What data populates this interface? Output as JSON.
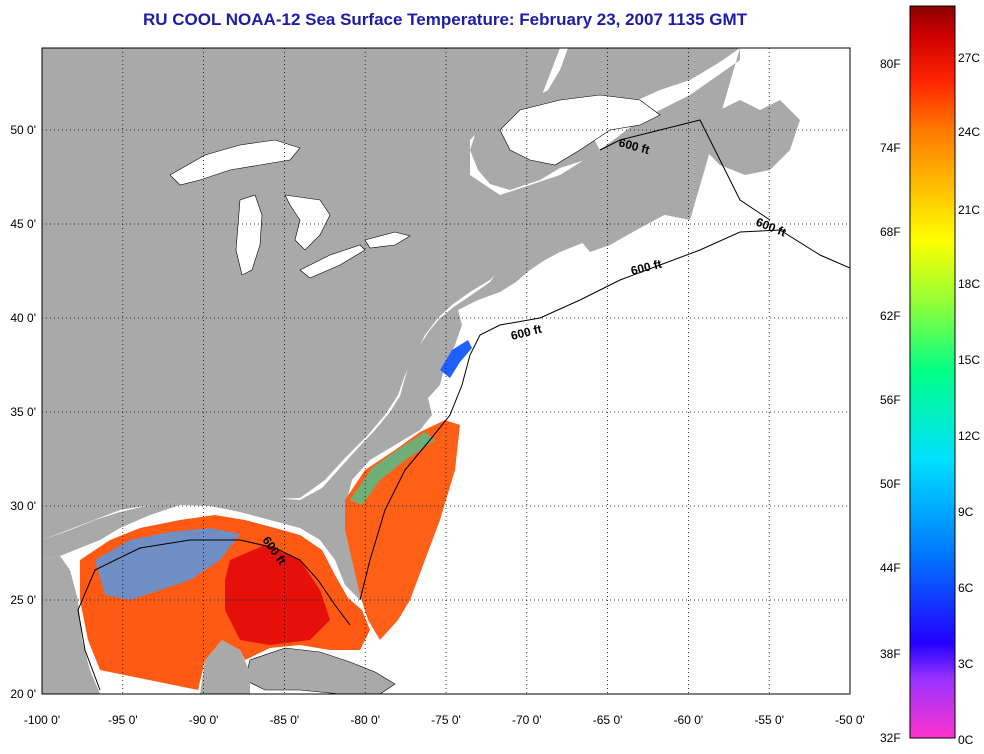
{
  "title": "RU COOL  NOAA-12  Sea Surface Temperature:  February 23, 2007 1135 GMT",
  "map": {
    "lon_ticks": [
      "-100 0'",
      "-95 0'",
      "-90 0'",
      "-85 0'",
      "-80 0'",
      "-75 0'",
      "-70 0'",
      "-65 0'",
      "-60 0'",
      "-55 0'",
      "-50 0'"
    ],
    "lat_ticks": [
      "50 0'",
      "45 0'",
      "40 0'",
      "35 0'",
      "30 0'",
      "25 0'",
      "20 0'"
    ],
    "depth_labels": [
      "600 ft",
      "600 ft",
      "600 ft",
      "600 ft",
      "600 ft"
    ],
    "colors": {
      "land": "#a9a9a9",
      "no_data": "#ffffff",
      "grid": "#000000"
    }
  },
  "colorbar": {
    "fahrenheit": [
      "80F",
      "74F",
      "68F",
      "62F",
      "56F",
      "50F",
      "44F",
      "38F",
      "32F"
    ],
    "celsius": [
      "27C",
      "24C",
      "21C",
      "18C",
      "15C",
      "12C",
      "9C",
      "6C",
      "3C",
      "0C"
    ]
  }
}
